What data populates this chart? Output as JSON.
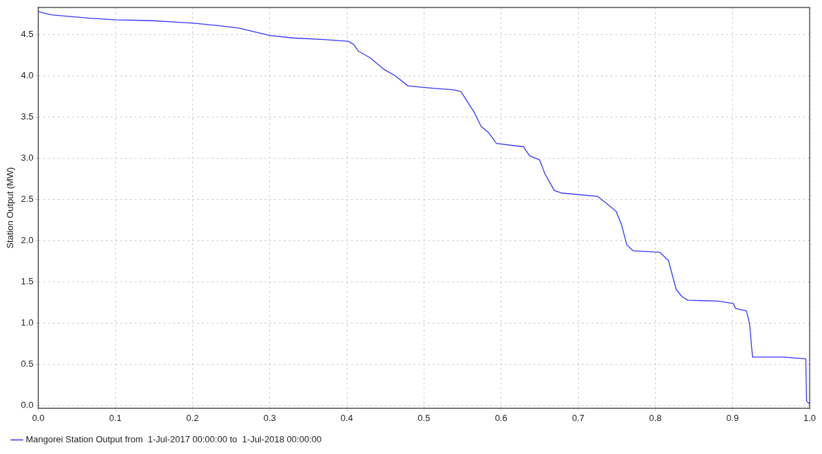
{
  "chart_data": {
    "type": "line",
    "ylabel": "Station Output (MW)",
    "xlim": [
      0,
      1
    ],
    "ylim": [
      -0.03,
      4.83
    ],
    "xticks": [
      {
        "value": 0,
        "label": "0.0"
      },
      {
        "value": 0.1,
        "label": "0.1"
      },
      {
        "value": 0.2,
        "label": "0.2"
      },
      {
        "value": 0.3,
        "label": "0.3"
      },
      {
        "value": 0.4,
        "label": "0.4"
      },
      {
        "value": 0.5,
        "label": "0.5"
      },
      {
        "value": 0.6,
        "label": "0.6"
      },
      {
        "value": 0.7,
        "label": "0.7"
      },
      {
        "value": 0.8,
        "label": "0.8"
      },
      {
        "value": 0.9,
        "label": "0.9"
      },
      {
        "value": 1,
        "label": "1.0"
      }
    ],
    "yticks": [
      {
        "value": 0,
        "label": "0.0"
      },
      {
        "value": 0.5,
        "label": "0.5"
      },
      {
        "value": 1,
        "label": "1.0"
      },
      {
        "value": 1.5,
        "label": "1.5"
      },
      {
        "value": 2,
        "label": "2.0"
      },
      {
        "value": 2.5,
        "label": "2.5"
      },
      {
        "value": 3,
        "label": "3.0"
      },
      {
        "value": 3.5,
        "label": "3.5"
      },
      {
        "value": 4,
        "label": "4.0"
      },
      {
        "value": 4.5,
        "label": "4.5"
      }
    ],
    "grid": true,
    "legend": "bottom",
    "marker": "none",
    "line_style": "solid",
    "series": [
      {
        "name": "Mangorei Station Output from  1-Jul-2017 00:00:00 to  1-Jul-2018 00:00:00",
        "color": "#3333ff",
        "x": [
          0,
          0.017,
          0.065,
          0.1,
          0.145,
          0.2,
          0.232,
          0.26,
          0.3,
          0.33,
          0.371,
          0.402,
          0.409,
          0.415,
          0.43,
          0.448,
          0.463,
          0.479,
          0.5,
          0.539,
          0.548,
          0.565,
          0.574,
          0.584,
          0.594,
          0.629,
          0.637,
          0.65,
          0.657,
          0.669,
          0.678,
          0.725,
          0.737,
          0.749,
          0.756,
          0.763,
          0.771,
          0.806,
          0.817,
          0.827,
          0.835,
          0.842,
          0.881,
          0.901,
          0.904,
          0.918,
          0.922,
          0.926,
          0.966,
          0.995,
          0.996,
          1
        ],
        "values": [
          4.78,
          4.74,
          4.7,
          4.68,
          4.67,
          4.64,
          4.61,
          4.58,
          4.49,
          4.46,
          4.44,
          4.42,
          4.38,
          4.3,
          4.22,
          4.08,
          4.0,
          3.88,
          3.86,
          3.83,
          3.81,
          3.56,
          3.39,
          3.31,
          3.18,
          3.14,
          3.03,
          2.98,
          2.81,
          2.61,
          2.58,
          2.54,
          2.45,
          2.36,
          2.2,
          1.95,
          1.88,
          1.86,
          1.76,
          1.41,
          1.32,
          1.28,
          1.27,
          1.24,
          1.18,
          1.15,
          1.0,
          0.59,
          0.59,
          0.57,
          0.06,
          0.02
        ]
      }
    ]
  }
}
